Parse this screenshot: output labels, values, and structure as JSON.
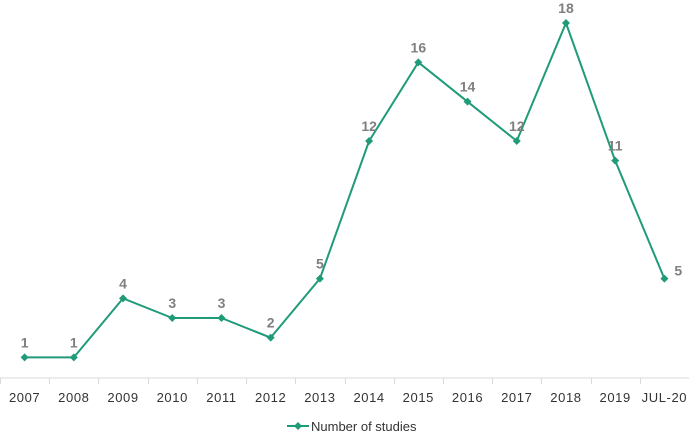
{
  "chart_data": {
    "type": "line",
    "categories": [
      "2007",
      "2008",
      "2009",
      "2010",
      "2011",
      "2012",
      "2013",
      "2014",
      "2015",
      "2016",
      "2017",
      "2018",
      "2019",
      "JUL-20"
    ],
    "series": [
      {
        "name": "Number of studies",
        "values": [
          1,
          1,
          4,
          3,
          3,
          2,
          5,
          12,
          16,
          14,
          12,
          18,
          11,
          5
        ],
        "color": "#1f9b7a"
      }
    ],
    "ylim": [
      0,
      18
    ],
    "grid": false,
    "legend_position": "bottom",
    "data_labels": true
  }
}
